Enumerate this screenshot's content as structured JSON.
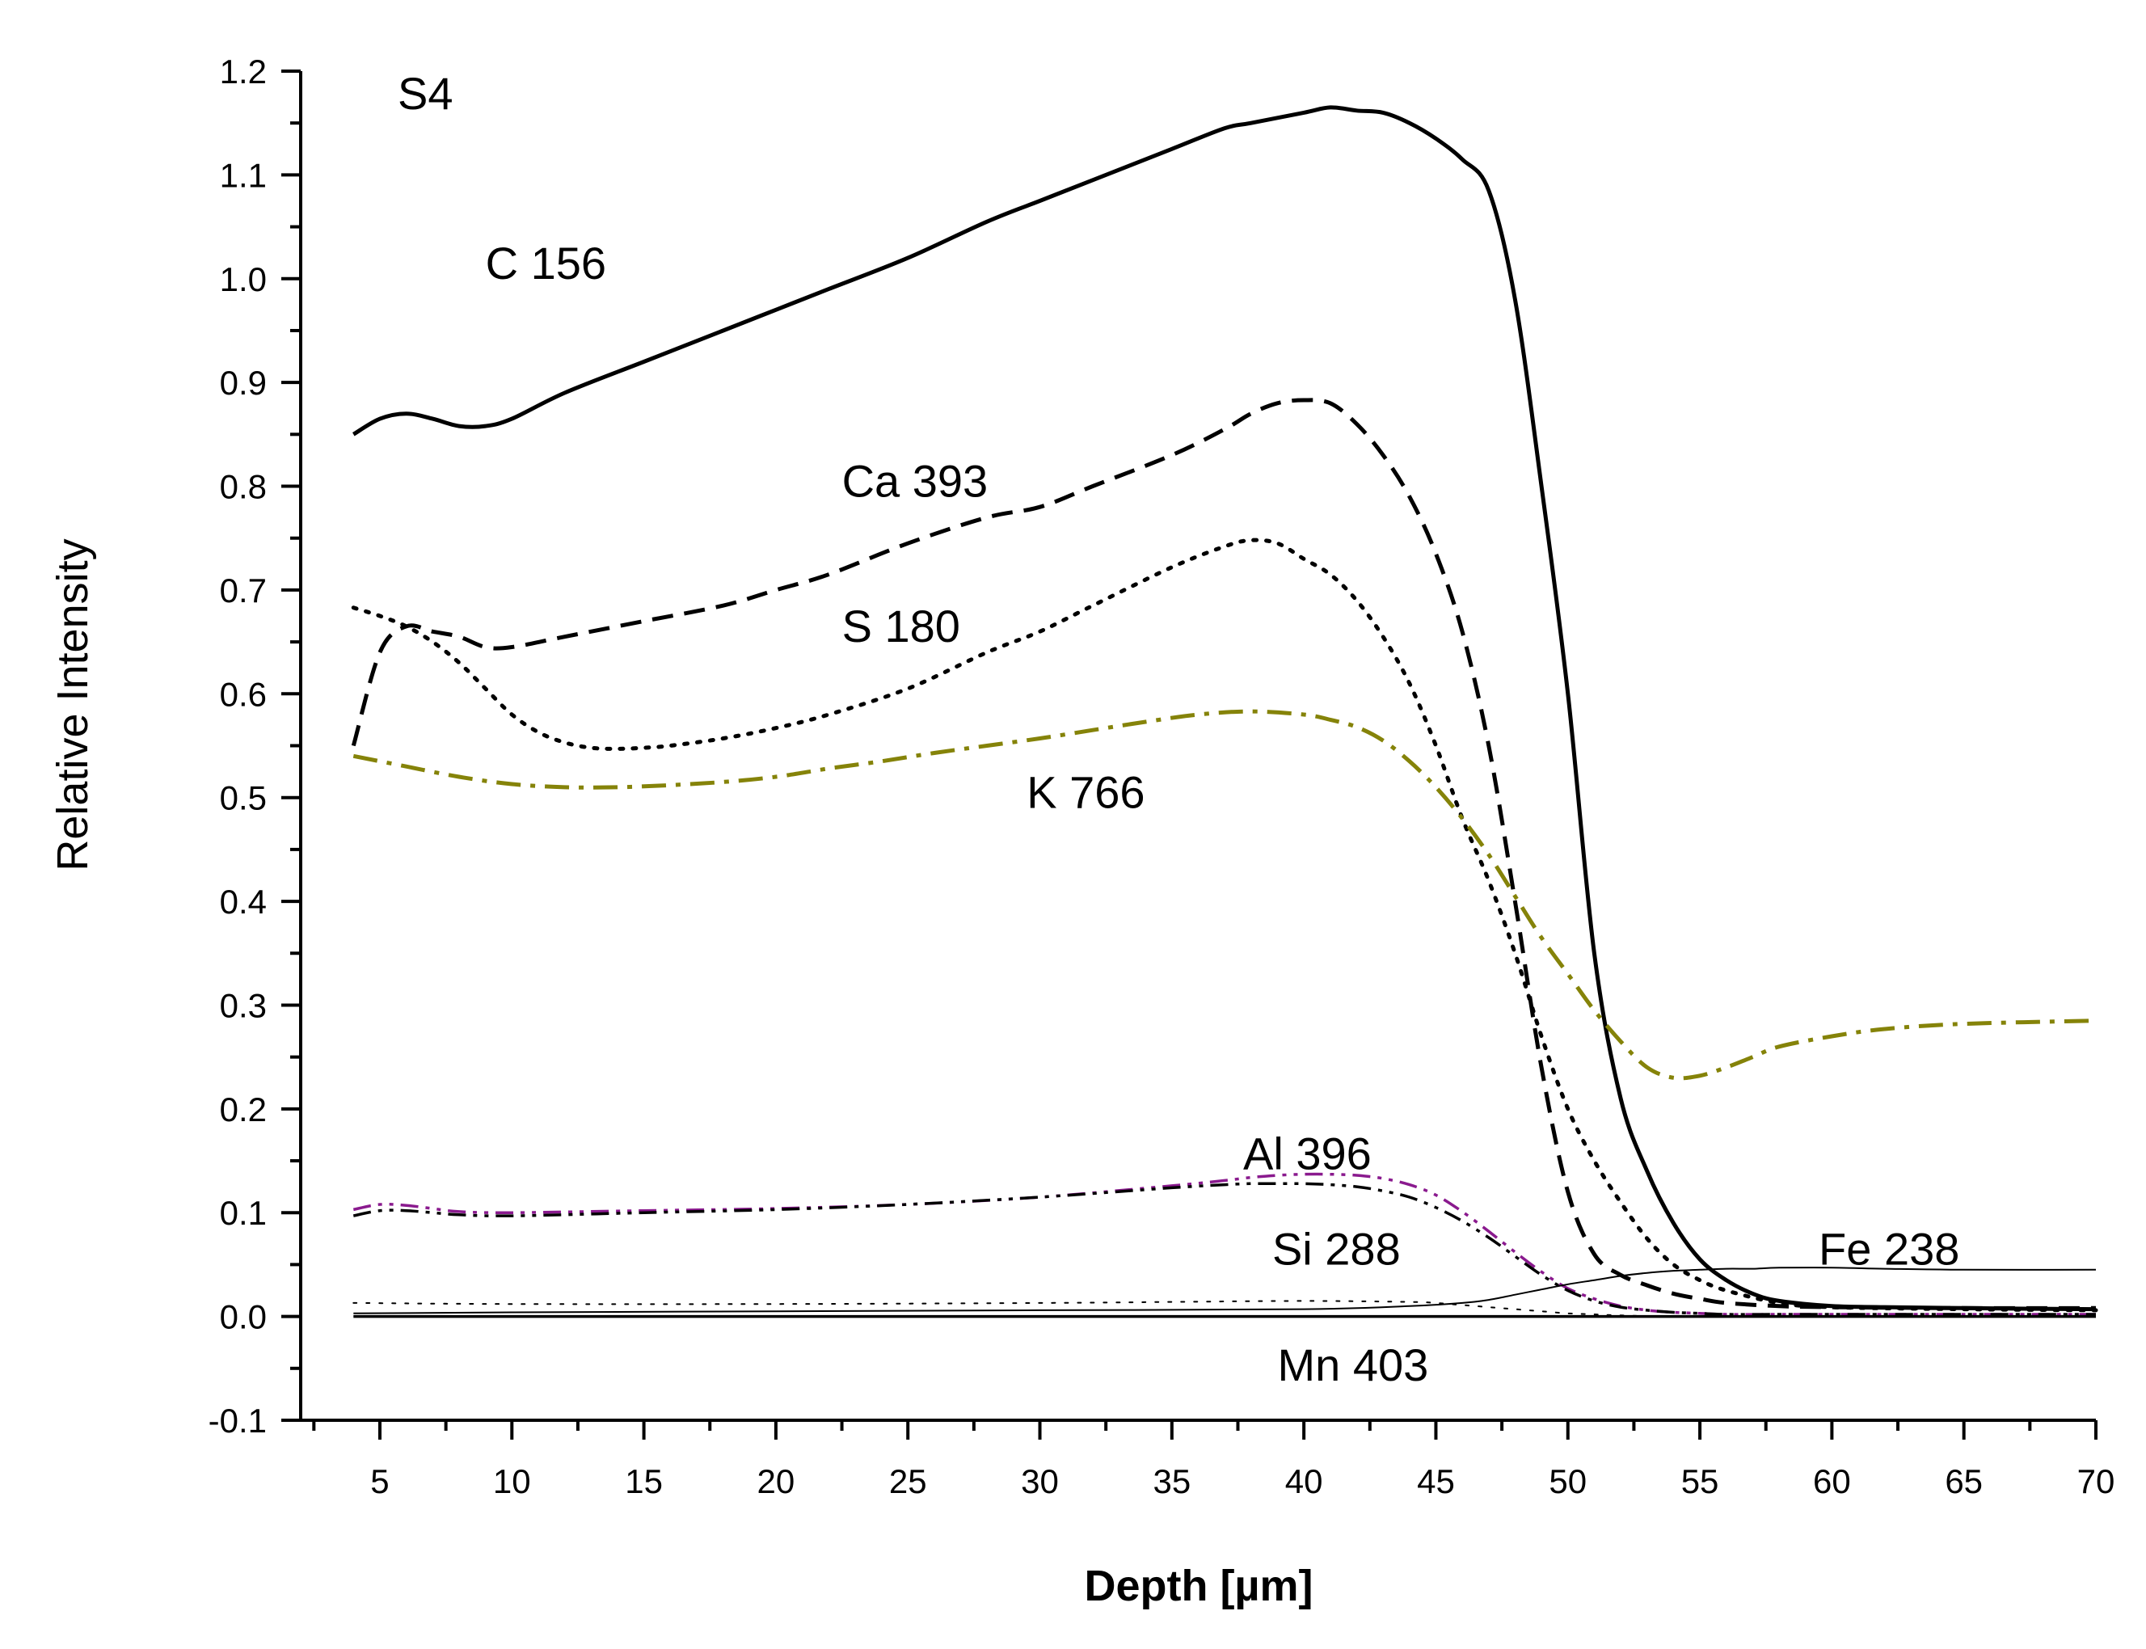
{
  "chart_data": {
    "type": "line",
    "title": "S4",
    "xlabel": "Depth [µm]",
    "ylabel": "Relative Intensity",
    "xlim": [
      2,
      70
    ],
    "ylim": [
      -0.1,
      1.2
    ],
    "xticks": [
      5,
      10,
      15,
      20,
      25,
      30,
      35,
      40,
      45,
      50,
      55,
      60,
      65,
      70
    ],
    "yticks": [
      -0.1,
      0.0,
      0.1,
      0.2,
      0.3,
      0.4,
      0.5,
      0.6,
      0.7,
      0.8,
      0.9,
      1.0,
      1.1,
      1.2
    ],
    "ytick_labels": [
      "-0.1",
      "0.0",
      "0.1",
      "0.2",
      "0.3",
      "0.4",
      "0.5",
      "0.6",
      "0.7",
      "0.8",
      "0.9",
      "1.0",
      "1.1",
      "1.2"
    ],
    "grid": false,
    "series": [
      {
        "name": "C 156",
        "color": "#000000",
        "style": "solid",
        "weight": "thick",
        "label_at": [
          9,
          1.0
        ],
        "x": [
          4,
          5,
          6,
          7,
          8,
          9,
          10,
          12,
          15,
          18,
          20,
          22,
          25,
          28,
          30,
          32,
          35,
          37,
          38,
          40,
          41,
          42,
          43,
          44,
          45,
          46,
          47,
          48,
          49,
          50,
          51,
          52,
          53,
          54,
          55,
          56,
          57,
          58,
          60,
          62,
          65,
          70
        ],
        "y": [
          0.85,
          0.865,
          0.87,
          0.865,
          0.858,
          0.858,
          0.865,
          0.89,
          0.92,
          0.95,
          0.97,
          0.99,
          1.02,
          1.055,
          1.075,
          1.095,
          1.125,
          1.145,
          1.15,
          1.16,
          1.165,
          1.162,
          1.16,
          1.15,
          1.135,
          1.115,
          1.085,
          0.98,
          0.8,
          0.6,
          0.35,
          0.21,
          0.14,
          0.09,
          0.055,
          0.035,
          0.022,
          0.015,
          0.01,
          0.009,
          0.008,
          0.007
        ]
      },
      {
        "name": "Ca 393",
        "color": "#000000",
        "style": "dashed",
        "weight": "thick",
        "label_at": [
          22.5,
          0.79
        ],
        "x": [
          4,
          5,
          6,
          7,
          8,
          9,
          10,
          12,
          15,
          18,
          20,
          22,
          25,
          28,
          30,
          32,
          35,
          37,
          38,
          39,
          40,
          41,
          42,
          43,
          44,
          45,
          46,
          47,
          48,
          49,
          50,
          51,
          52,
          53,
          54,
          55,
          56,
          58,
          60,
          65,
          70
        ],
        "y": [
          0.55,
          0.64,
          0.665,
          0.66,
          0.655,
          0.645,
          0.645,
          0.655,
          0.67,
          0.685,
          0.7,
          0.715,
          0.745,
          0.77,
          0.78,
          0.8,
          0.83,
          0.855,
          0.87,
          0.88,
          0.883,
          0.88,
          0.86,
          0.83,
          0.79,
          0.735,
          0.66,
          0.55,
          0.4,
          0.24,
          0.12,
          0.06,
          0.04,
          0.03,
          0.022,
          0.017,
          0.013,
          0.01,
          0.009,
          0.008,
          0.008
        ]
      },
      {
        "name": "S 180",
        "color": "#000000",
        "style": "dotted",
        "weight": "thick",
        "label_at": [
          22.5,
          0.65
        ],
        "x": [
          4,
          5,
          6,
          7,
          8,
          9,
          10,
          11,
          12,
          13,
          14,
          15,
          16,
          18,
          20,
          22,
          25,
          28,
          30,
          32,
          35,
          37,
          38,
          39,
          40,
          41,
          42,
          43,
          44,
          45,
          46,
          47,
          48,
          49,
          50,
          51,
          52,
          53,
          54,
          55,
          56,
          58,
          60,
          65,
          70
        ],
        "y": [
          0.683,
          0.675,
          0.665,
          0.65,
          0.63,
          0.605,
          0.58,
          0.563,
          0.553,
          0.548,
          0.547,
          0.548,
          0.55,
          0.557,
          0.567,
          0.58,
          0.605,
          0.64,
          0.66,
          0.685,
          0.722,
          0.742,
          0.748,
          0.745,
          0.73,
          0.715,
          0.69,
          0.655,
          0.61,
          0.55,
          0.48,
          0.42,
          0.35,
          0.27,
          0.2,
          0.15,
          0.11,
          0.075,
          0.05,
          0.035,
          0.025,
          0.013,
          0.009,
          0.007,
          0.006
        ]
      },
      {
        "name": "K 766",
        "color": "#858309",
        "style": "dashdot",
        "weight": "thick",
        "label_at": [
          29.5,
          0.49
        ],
        "x": [
          4,
          6,
          8,
          10,
          12,
          14,
          16,
          18,
          20,
          22,
          24,
          26,
          28,
          30,
          32,
          34,
          36,
          38,
          40,
          41,
          42,
          43,
          44,
          45,
          46,
          47,
          48,
          49,
          50,
          51,
          52,
          53,
          54,
          55,
          56,
          57,
          58,
          60,
          62,
          65,
          70
        ],
        "y": [
          0.54,
          0.53,
          0.52,
          0.513,
          0.51,
          0.51,
          0.512,
          0.515,
          0.52,
          0.528,
          0.535,
          0.543,
          0.55,
          0.557,
          0.565,
          0.573,
          0.58,
          0.583,
          0.58,
          0.575,
          0.568,
          0.555,
          0.535,
          0.51,
          0.48,
          0.445,
          0.405,
          0.365,
          0.33,
          0.295,
          0.265,
          0.24,
          0.23,
          0.232,
          0.24,
          0.25,
          0.26,
          0.27,
          0.277,
          0.282,
          0.285
        ]
      },
      {
        "name": "Al 396",
        "color": "#8a1a8e",
        "style": "dashdotdot",
        "weight": "medium",
        "label_at": [
          37.7,
          0.142
        ],
        "x": [
          4,
          5,
          6,
          7,
          8,
          10,
          15,
          20,
          25,
          30,
          35,
          37,
          38,
          39,
          40,
          41,
          42,
          43,
          44,
          45,
          46,
          47,
          48,
          49,
          50,
          51,
          52,
          53,
          54,
          55,
          56,
          58,
          60,
          65,
          70
        ],
        "y": [
          0.103,
          0.108,
          0.107,
          0.104,
          0.101,
          0.1,
          0.102,
          0.104,
          0.108,
          0.115,
          0.126,
          0.131,
          0.134,
          0.136,
          0.137,
          0.137,
          0.136,
          0.133,
          0.127,
          0.117,
          0.101,
          0.082,
          0.062,
          0.043,
          0.027,
          0.017,
          0.01,
          0.006,
          0.004,
          0.003,
          0.002,
          0.002,
          0.002,
          0.002,
          0.002
        ]
      },
      {
        "name": "Si 288",
        "color": "#000000",
        "style": "dashdotdot",
        "weight": "medium",
        "label_at": [
          38.8,
          0.05
        ],
        "x": [
          4,
          5,
          6,
          7,
          8,
          10,
          15,
          20,
          25,
          30,
          35,
          37,
          38,
          39,
          40,
          41,
          42,
          43,
          44,
          45,
          46,
          47,
          48,
          49,
          50,
          51,
          52,
          53,
          54,
          55,
          56,
          58,
          60,
          65,
          70
        ],
        "y": [
          0.097,
          0.102,
          0.102,
          0.1,
          0.098,
          0.097,
          0.1,
          0.103,
          0.108,
          0.115,
          0.124,
          0.127,
          0.128,
          0.128,
          0.128,
          0.127,
          0.125,
          0.121,
          0.115,
          0.105,
          0.092,
          0.076,
          0.058,
          0.04,
          0.025,
          0.015,
          0.009,
          0.006,
          0.004,
          0.003,
          0.002,
          0.002,
          0.002,
          0.002,
          0.002
        ]
      },
      {
        "name": "Fe 238",
        "color": "#000000",
        "style": "solid",
        "weight": "thin",
        "label_at": [
          59.5,
          0.05
        ],
        "x": [
          4,
          10,
          20,
          30,
          40,
          44,
          46,
          47,
          48,
          49,
          50,
          51,
          52,
          53,
          54,
          55,
          56,
          57,
          58,
          60,
          62,
          65,
          70
        ],
        "y": [
          0.003,
          0.004,
          0.005,
          0.006,
          0.007,
          0.01,
          0.013,
          0.016,
          0.021,
          0.026,
          0.031,
          0.035,
          0.039,
          0.042,
          0.044,
          0.045,
          0.046,
          0.046,
          0.047,
          0.047,
          0.046,
          0.045,
          0.045
        ]
      },
      {
        "name": "Mn 403",
        "color": "#000000",
        "style": "dotted",
        "weight": "thin",
        "label_at": [
          39.0,
          -0.062
        ],
        "x": [
          4,
          10,
          20,
          30,
          35,
          40,
          44,
          45,
          46,
          47,
          48,
          49,
          50,
          51,
          52,
          54,
          56,
          60,
          65,
          70
        ],
        "y": [
          0.013,
          0.012,
          0.012,
          0.013,
          0.014,
          0.015,
          0.014,
          0.013,
          0.011,
          0.009,
          0.007,
          0.005,
          0.003,
          0.002,
          0.001,
          0.0,
          0.0,
          0.0,
          0.0,
          0.0
        ]
      },
      {
        "name": "baseline",
        "color": "#000000",
        "style": "solid",
        "weight": "medium",
        "x": [
          4,
          70
        ],
        "y": [
          0.0,
          0.0
        ]
      }
    ]
  }
}
